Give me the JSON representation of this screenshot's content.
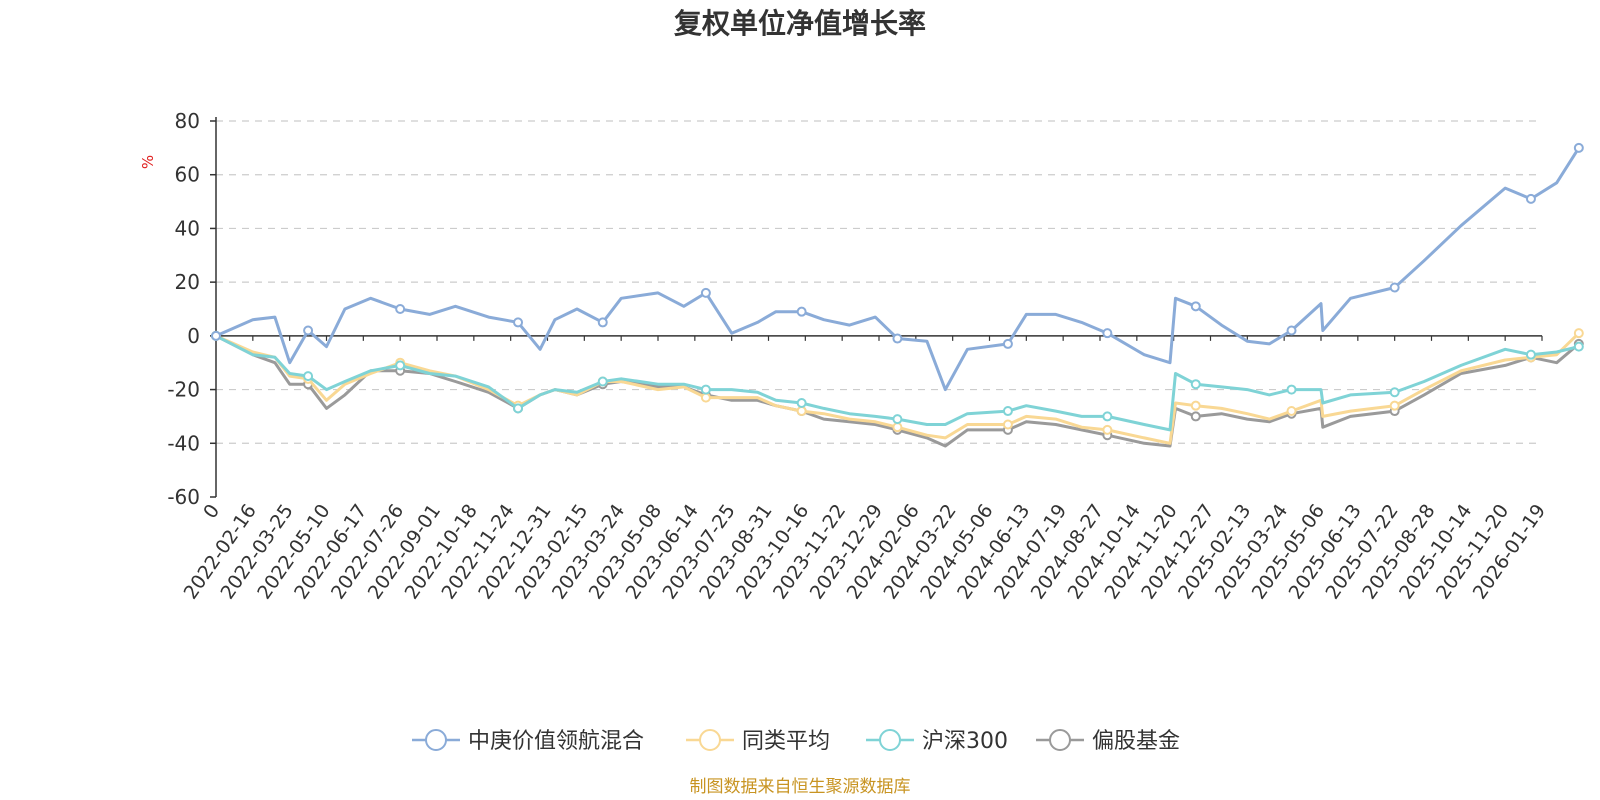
{
  "chart_data": {
    "type": "line",
    "title": "复权单位净值增长率",
    "ylabel": "%",
    "ylim": [
      -60,
      80
    ],
    "yticks": [
      -60,
      -40,
      -20,
      0,
      20,
      40,
      60,
      80
    ],
    "grid": true,
    "legend_position": "bottom",
    "source": "制图数据来自恒生聚源数据库",
    "x_tick_labels": [
      "0",
      "2022-02-16",
      "2022-03-25",
      "2022-05-10",
      "2022-06-17",
      "2022-07-26",
      "2022-09-01",
      "2022-10-18",
      "2022-11-24",
      "2022-12-31",
      "2023-02-15",
      "2023-03-24",
      "2023-05-08",
      "2023-06-14",
      "2023-07-25",
      "2023-08-31",
      "2023-10-16",
      "2023-11-22",
      "2023-12-29",
      "2024-02-06",
      "2024-03-22",
      "2024-05-06",
      "2024-06-13",
      "2024-07-19",
      "2024-08-27",
      "2024-10-14",
      "2024-11-20",
      "2024-12-27",
      "2025-02-13",
      "2025-03-24",
      "2025-05-06",
      "2025-06-13",
      "2025-07-22",
      "2025-08-28",
      "2025-10-14",
      "2025-11-20",
      "2026-01-19"
    ],
    "series": [
      {
        "name": "中庚价值领航混合",
        "color": "#8aabd8",
        "values": [
          0,
          6,
          7,
          -10,
          2,
          -4,
          10,
          14,
          10,
          8,
          11,
          7,
          5,
          -5,
          6,
          10,
          5,
          14,
          16,
          11,
          16,
          1,
          5,
          9,
          9,
          6,
          4,
          7,
          -1,
          -2,
          -20,
          -5,
          -3,
          8,
          8,
          5,
          1,
          -7,
          -10,
          14,
          11,
          4,
          -2,
          -3,
          2,
          12,
          2,
          14,
          18,
          28,
          41,
          55,
          51,
          57,
          70
        ],
        "x": [
          0,
          1,
          1.6,
          2,
          2.5,
          3,
          3.5,
          4.2,
          5,
          5.8,
          6.5,
          7.4,
          8.2,
          8.8,
          9.2,
          9.8,
          10.5,
          11,
          12,
          12.7,
          13.3,
          14,
          14.7,
          15.2,
          15.9,
          16.5,
          17.2,
          17.9,
          18.5,
          19.3,
          19.8,
          20.4,
          21.5,
          22,
          22.8,
          23.5,
          24.2,
          25.2,
          25.9,
          26.05,
          26.6,
          27.3,
          28,
          28.6,
          29.2,
          30,
          30.05,
          30.8,
          32,
          32.8,
          33.8,
          35,
          35.7,
          36.4,
          37
        ]
      },
      {
        "name": "同类平均",
        "color": "#f9d894",
        "x": [
          0,
          1,
          1.6,
          2,
          2.5,
          3,
          3.5,
          4.2,
          5,
          5.8,
          6.5,
          7.4,
          8.2,
          8.8,
          9.2,
          9.8,
          10.5,
          11,
          12,
          12.7,
          13.3,
          14,
          14.7,
          15.2,
          15.9,
          16.5,
          17.2,
          17.9,
          18.5,
          19.3,
          19.8,
          20.4,
          21.5,
          22,
          22.8,
          23.5,
          24.2,
          25.2,
          25.9,
          26.05,
          26.6,
          27.3,
          28,
          28.6,
          29.2,
          30,
          30.05,
          30.8,
          32,
          32.8,
          33.8,
          35,
          35.7,
          36.4,
          37
        ],
        "values": [
          0,
          -6,
          -8,
          -15,
          -16,
          -24,
          -18,
          -14,
          -10,
          -13,
          -15,
          -20,
          -26,
          -22,
          -20,
          -22,
          -17,
          -17,
          -20,
          -19,
          -23,
          -23,
          -23,
          -26,
          -28,
          -29,
          -31,
          -32,
          -34,
          -37,
          -38,
          -33,
          -33,
          -30,
          -31,
          -34,
          -35,
          -38,
          -40,
          -25,
          -26,
          -27,
          -29,
          -31,
          -28,
          -24,
          -30,
          -28,
          -26,
          -20,
          -13,
          -9,
          -8,
          -7,
          1
        ]
      },
      {
        "name": "沪深300",
        "color": "#7fd3d6",
        "x": [
          0,
          1,
          1.6,
          2,
          2.5,
          3,
          3.5,
          4.2,
          5,
          5.8,
          6.5,
          7.4,
          8.2,
          8.8,
          9.2,
          9.8,
          10.5,
          11,
          12,
          12.7,
          13.3,
          14,
          14.7,
          15.2,
          15.9,
          16.5,
          17.2,
          17.9,
          18.5,
          19.3,
          19.8,
          20.4,
          21.5,
          22,
          22.8,
          23.5,
          24.2,
          25.2,
          25.9,
          26.05,
          26.6,
          27.3,
          28,
          28.6,
          29.2,
          30,
          30.05,
          30.8,
          32,
          32.8,
          33.8,
          35,
          35.7,
          36.4,
          37
        ],
        "values": [
          0,
          -7,
          -8,
          -14,
          -15,
          -20,
          -17,
          -13,
          -11,
          -14,
          -15,
          -19,
          -27,
          -22,
          -20,
          -21,
          -17,
          -16,
          -18,
          -18,
          -20,
          -20,
          -21,
          -24,
          -25,
          -27,
          -29,
          -30,
          -31,
          -33,
          -33,
          -29,
          -28,
          -26,
          -28,
          -30,
          -30,
          -33,
          -35,
          -14,
          -18,
          -19,
          -20,
          -22,
          -20,
          -20,
          -25,
          -22,
          -21,
          -17,
          -11,
          -5,
          -7,
          -6,
          -4
        ]
      },
      {
        "name": "偏股基金",
        "color": "#9a9a9a",
        "x": [
          0,
          1,
          1.6,
          2,
          2.5,
          3,
          3.5,
          4.2,
          5,
          5.8,
          6.5,
          7.4,
          8.2,
          8.8,
          9.2,
          9.8,
          10.5,
          11,
          12,
          12.7,
          13.3,
          14,
          14.7,
          15.2,
          15.9,
          16.5,
          17.2,
          17.9,
          18.5,
          19.3,
          19.8,
          20.4,
          21.5,
          22,
          22.8,
          23.5,
          24.2,
          25.2,
          25.9,
          26.05,
          26.6,
          27.3,
          28,
          28.6,
          29.2,
          30,
          30.05,
          30.8,
          32,
          32.8,
          33.8,
          35,
          35.7,
          36.4,
          37
        ],
        "values": [
          0,
          -7,
          -10,
          -18,
          -18,
          -27,
          -22,
          -13,
          -13,
          -14,
          -17,
          -21,
          -27,
          -22,
          -20,
          -22,
          -18,
          -17,
          -19,
          -19,
          -22,
          -24,
          -24,
          -26,
          -28,
          -31,
          -32,
          -33,
          -35,
          -38,
          -41,
          -35,
          -35,
          -32,
          -33,
          -35,
          -37,
          -40,
          -41,
          -27,
          -30,
          -29,
          -31,
          -32,
          -29,
          -27,
          -34,
          -30,
          -28,
          -22,
          -14,
          -11,
          -8,
          -10,
          -3
        ]
      }
    ]
  }
}
